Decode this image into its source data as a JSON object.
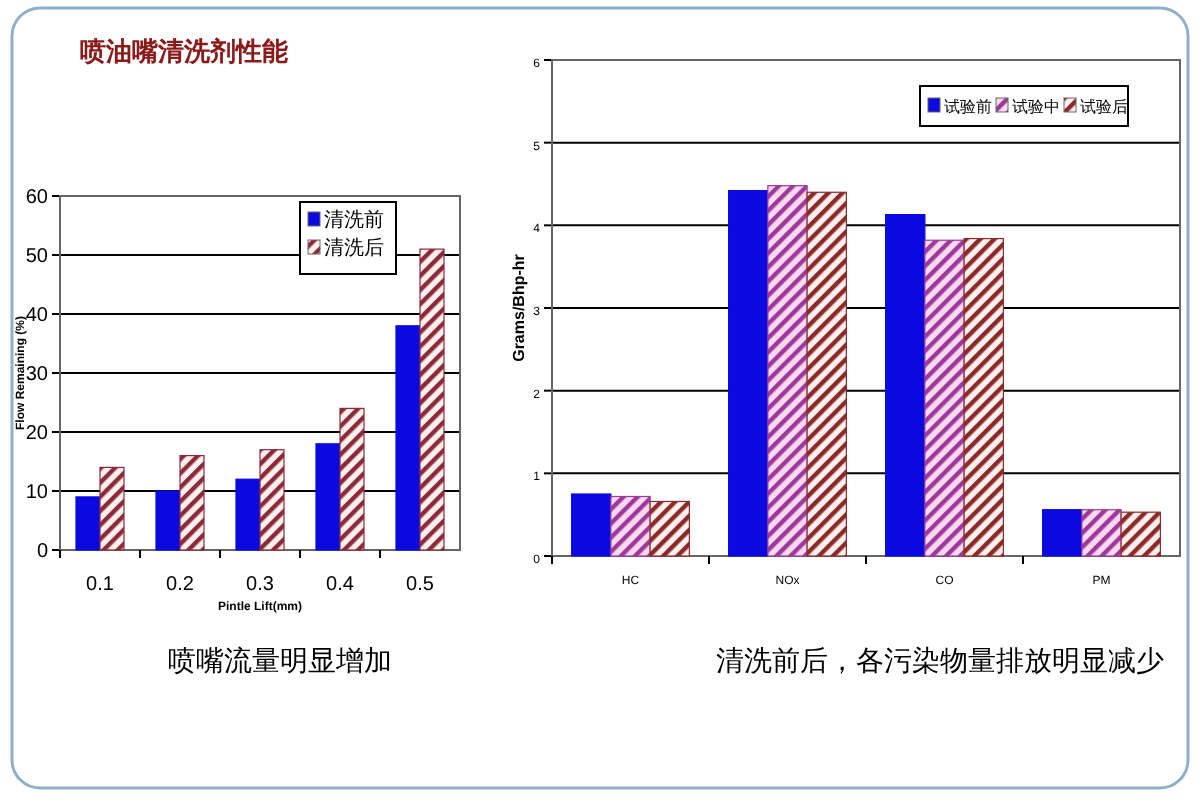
{
  "chart_data": [
    {
      "type": "bar",
      "title": "喷油嘴清洗剂性能",
      "xlabel": "Pintle Lift(mm)",
      "ylabel": "Flow Remaining (%)",
      "categories": [
        "0.1",
        "0.2",
        "0.3",
        "0.4",
        "0.5"
      ],
      "series": [
        {
          "name": "清洗前",
          "color": "#0a0ae0",
          "values": [
            9,
            10,
            12,
            18,
            38
          ]
        },
        {
          "name": "清洗后",
          "color": "#8b2a3a",
          "values": [
            14,
            16,
            17,
            24,
            51
          ]
        }
      ],
      "ylim": [
        0,
        60
      ],
      "yticks": [
        0,
        10,
        20,
        30,
        40,
        50,
        60
      ],
      "grid": "y",
      "legend": "top right",
      "annotations": [
        "喷嘴流量明显增加"
      ]
    },
    {
      "type": "bar",
      "ylabel": "Grams/Bhp-hr",
      "categories": [
        "HC",
        "NOx",
        "CO",
        "PM"
      ],
      "series": [
        {
          "name": "试验前",
          "color": "#0a0ae0",
          "values": [
            0.75,
            4.42,
            4.13,
            0.56
          ]
        },
        {
          "name": "试验中",
          "color": "#9a3a9a",
          "values": [
            0.72,
            4.48,
            3.82,
            0.56
          ]
        },
        {
          "name": "试验后",
          "color": "#8b2a2a",
          "values": [
            0.66,
            4.4,
            3.84,
            0.53
          ]
        }
      ],
      "ylim": [
        0,
        6
      ],
      "yticks": [
        0,
        1,
        2,
        3,
        4,
        5,
        6
      ],
      "grid": "y",
      "legend": "top right",
      "annotations": [
        "清洗前后，各污染物量排放明显减少"
      ]
    }
  ]
}
